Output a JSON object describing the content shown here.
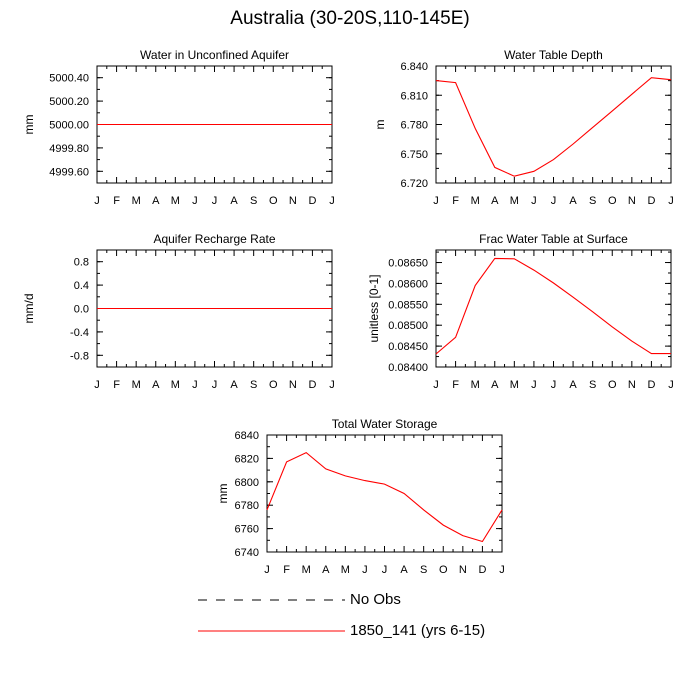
{
  "figure": {
    "title": "Australia (30-20S,110-145E)"
  },
  "months": [
    "J",
    "F",
    "M",
    "A",
    "M",
    "J",
    "J",
    "A",
    "S",
    "O",
    "N",
    "D",
    "J"
  ],
  "colors": {
    "model": "#ff0000",
    "obs": "#000000"
  },
  "legend": {
    "items": [
      {
        "label": "No Obs",
        "style": "dashed",
        "color": "#000000"
      },
      {
        "label": "1850_141 (yrs 6-15)",
        "style": "solid",
        "color": "#ff0000"
      }
    ]
  },
  "chart_data": [
    {
      "type": "line",
      "title": "Water in Unconfined Aquifer",
      "xlabel": "",
      "ylabel": "mm",
      "categories": [
        "J",
        "F",
        "M",
        "A",
        "M",
        "J",
        "J",
        "A",
        "S",
        "O",
        "N",
        "D",
        "J"
      ],
      "ylim": [
        4999.5,
        5000.5
      ],
      "yticks": [
        4999.6,
        4999.8,
        5000.0,
        5000.2,
        5000.4
      ],
      "ytick_labels": [
        "4999.60",
        "4999.80",
        "5000.00",
        "5000.20",
        "5000.40"
      ],
      "series": [
        {
          "values": [
            5000,
            5000,
            5000,
            5000,
            5000,
            5000,
            5000,
            5000,
            5000,
            5000,
            5000,
            5000,
            5000
          ]
        }
      ]
    },
    {
      "type": "line",
      "title": "Water Table Depth",
      "xlabel": "",
      "ylabel": "m",
      "categories": [
        "J",
        "F",
        "M",
        "A",
        "M",
        "J",
        "J",
        "A",
        "S",
        "O",
        "N",
        "D",
        "J"
      ],
      "ylim": [
        6.72,
        6.84
      ],
      "yticks": [
        6.72,
        6.75,
        6.78,
        6.81,
        6.84
      ],
      "ytick_labels": [
        "6.720",
        "6.750",
        "6.780",
        "6.810",
        "6.840"
      ],
      "series": [
        {
          "values": [
            6.825,
            6.823,
            6.776,
            6.736,
            6.727,
            6.732,
            6.744,
            6.76,
            6.777,
            6.794,
            6.811,
            6.828,
            6.826
          ]
        }
      ]
    },
    {
      "type": "line",
      "title": "Aquifer Recharge Rate",
      "xlabel": "",
      "ylabel": "mm/d",
      "categories": [
        "J",
        "F",
        "M",
        "A",
        "M",
        "J",
        "J",
        "A",
        "S",
        "O",
        "N",
        "D",
        "J"
      ],
      "ylim": [
        -1.0,
        1.0
      ],
      "yticks": [
        -0.8,
        -0.4,
        0.0,
        0.4,
        0.8
      ],
      "ytick_labels": [
        "-0.8",
        "-0.4",
        "0.0",
        "0.4",
        "0.8"
      ],
      "series": [
        {
          "values": [
            0,
            0,
            0,
            0,
            0,
            0,
            0,
            0,
            0,
            0,
            0,
            0,
            0
          ]
        }
      ]
    },
    {
      "type": "line",
      "title": "Frac Water Table at Surface",
      "xlabel": "",
      "ylabel": "unitless [0-1]",
      "categories": [
        "J",
        "F",
        "M",
        "A",
        "M",
        "J",
        "J",
        "A",
        "S",
        "O",
        "N",
        "D",
        "J"
      ],
      "ylim": [
        0.084,
        0.0868
      ],
      "yticks": [
        0.084,
        0.0845,
        0.085,
        0.0855,
        0.086,
        0.0865
      ],
      "ytick_labels": [
        "0.08400",
        "0.08450",
        "0.08500",
        "0.08550",
        "0.08600",
        "0.08650"
      ],
      "series": [
        {
          "values": [
            0.08431,
            0.08471,
            0.08595,
            0.0866,
            0.08659,
            0.08632,
            0.08601,
            0.08567,
            0.08532,
            0.08496,
            0.08462,
            0.08432,
            0.08432
          ]
        }
      ]
    },
    {
      "type": "line",
      "title": "Total Water Storage",
      "xlabel": "",
      "ylabel": "mm",
      "categories": [
        "J",
        "F",
        "M",
        "A",
        "M",
        "J",
        "J",
        "A",
        "S",
        "O",
        "N",
        "D",
        "J"
      ],
      "ylim": [
        6740,
        6840
      ],
      "yticks": [
        6740,
        6760,
        6780,
        6800,
        6820,
        6840
      ],
      "ytick_labels": [
        "6740",
        "6760",
        "6780",
        "6800",
        "6820",
        "6840"
      ],
      "series": [
        {
          "values": [
            6776,
            6817,
            6825,
            6811,
            6805,
            6801,
            6798,
            6790,
            6776,
            6763,
            6754,
            6749,
            6776
          ]
        }
      ]
    }
  ]
}
